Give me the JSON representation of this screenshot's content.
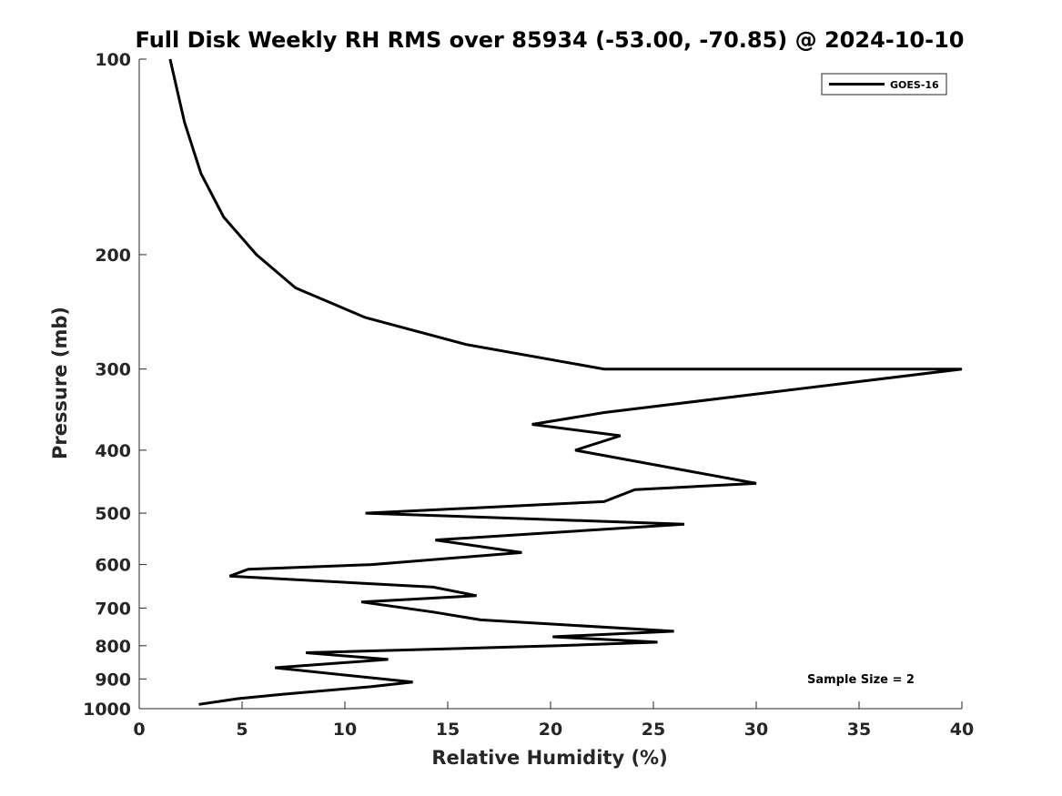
{
  "chart_data": {
    "type": "line",
    "title": "Full Disk Weekly RH RMS over 85934 (-53.00, -70.85) @ 2024-10-10",
    "xlabel": "Relative Humidity (%)",
    "ylabel": "Pressure (mb)",
    "xlim": [
      0,
      40
    ],
    "ylim": [
      100,
      1000
    ],
    "y_scale": "log",
    "y_reversed": true,
    "xticks": [
      0,
      5,
      10,
      15,
      20,
      25,
      30,
      35,
      40
    ],
    "yticks": [
      100,
      200,
      300,
      400,
      500,
      600,
      700,
      800,
      900,
      1000
    ],
    "grid": false,
    "legend_position": "top-right",
    "annotation": "Sample Size = 2",
    "series": [
      {
        "name": "GOES-16",
        "color": "#000000",
        "x": [
          1.5,
          2.2,
          3.0,
          4.1,
          5.7,
          7.6,
          11.0,
          15.9,
          22.6,
          29.9,
          40.0,
          38.0,
          40.0,
          22.6,
          19.1,
          23.4,
          21.2,
          30.0,
          24.1,
          22.6,
          11.0,
          26.5,
          14.4,
          18.6,
          11.3,
          5.3,
          4.4,
          14.3,
          16.4,
          10.8,
          14.3,
          16.6,
          26.0,
          20.1,
          25.2,
          20.4,
          8.1,
          12.1,
          6.6,
          13.3,
          11.3,
          7.0,
          4.8,
          2.9
        ],
        "y": [
          100,
          125,
          150,
          175,
          200,
          225,
          250,
          275,
          300,
          300,
          300,
          300,
          300,
          350,
          365,
          380,
          400,
          450,
          460,
          480,
          500,
          520,
          550,
          575,
          600,
          610,
          625,
          650,
          670,
          685,
          710,
          730,
          760,
          775,
          790,
          800,
          820,
          840,
          865,
          910,
          925,
          950,
          965,
          985
        ]
      }
    ]
  }
}
